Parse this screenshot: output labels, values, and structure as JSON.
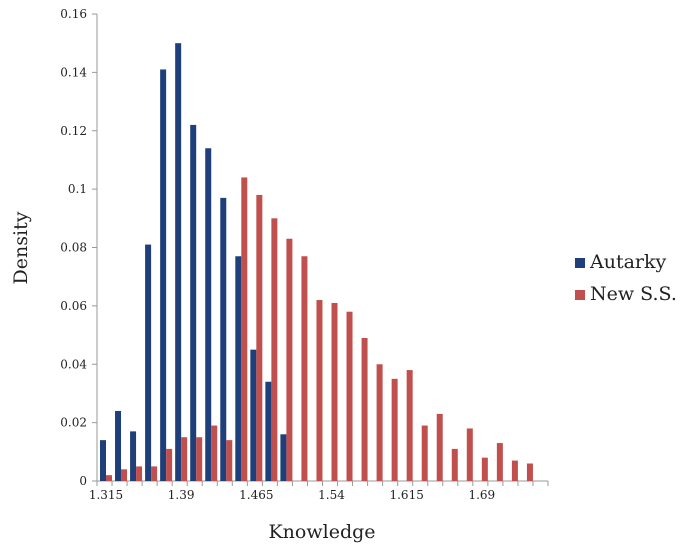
{
  "chart_data": {
    "type": "bar",
    "title": "",
    "xlabel": "Knowledge",
    "ylabel": "Density",
    "ylim": [
      0,
      0.16
    ],
    "yticks": [
      "0",
      "0.02",
      "0.04",
      "0.06",
      "0.08",
      "0.1",
      "0.12",
      "0.14",
      "0.16"
    ],
    "xtick_labels": [
      "1.315",
      "1.39",
      "1.465",
      "1.54",
      "1.615",
      "1.69"
    ],
    "xtick_every": 5,
    "grid": false,
    "legend_position": "right",
    "series": [
      {
        "name": "Autarky",
        "color": "#1F3F7A",
        "values": [
          0.014,
          0.024,
          0.017,
          0.081,
          0.141,
          0.15,
          0.122,
          0.114,
          0.097,
          0.077,
          0.045,
          0.034,
          0.016,
          0,
          0,
          0,
          0,
          0,
          0,
          0,
          0,
          0,
          0,
          0,
          0,
          0,
          0,
          0,
          0,
          0
        ]
      },
      {
        "name": "New S.S.",
        "color": "#C0504D",
        "values": [
          0.002,
          0.004,
          0.005,
          0.005,
          0.011,
          0.015,
          0.015,
          0.019,
          0.014,
          0.104,
          0.098,
          0.09,
          0.083,
          0.077,
          0.062,
          0.061,
          0.058,
          0.049,
          0.04,
          0.035,
          0.038,
          0.019,
          0.023,
          0.011,
          0.018,
          0.008,
          0.013,
          0.007,
          0.006,
          0
        ]
      }
    ]
  }
}
